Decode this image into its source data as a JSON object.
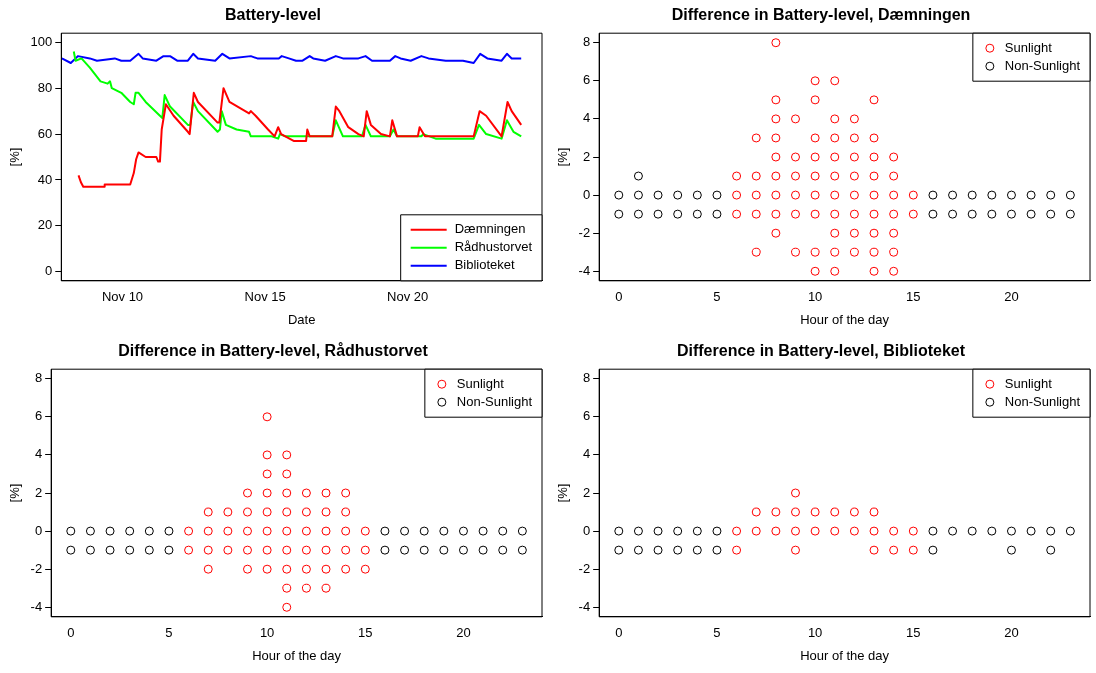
{
  "chart_data": [
    {
      "type": "line",
      "title": "Battery-level",
      "xlabel": "Date",
      "ylabel": "[%]",
      "xlim": [
        "--11-07T20:30",
        "--11-24T17:00"
      ],
      "xticks": [
        {
          "value": "--11-10",
          "label": "Nov 10"
        },
        {
          "value": "--11-15",
          "label": "Nov 15"
        },
        {
          "value": "--11-20",
          "label": "Nov 20"
        }
      ],
      "ylim": [
        -4,
        104
      ],
      "yticks": [
        0,
        20,
        40,
        60,
        80,
        100
      ],
      "legend": "bottom right",
      "marker": "none",
      "series": [
        {
          "name": "Dæmningen",
          "color": "#ff0000",
          "x": [
            "--11-08T11:00",
            "--11-08T13:00",
            "--11-08T15:00",
            "--11-09T08:30",
            "--11-09T09:00",
            "--11-10T06:30",
            "--11-10T09:30",
            "--11-10T11:30",
            "--11-10T13:30",
            "--11-10T19:30",
            "--11-11T04:30",
            "--11-11T06:00",
            "--11-11T07:30",
            "--11-11T09:00",
            "--11-11T12:30",
            "--11-11T19:00",
            "--11-12T07:00",
            "--11-12T08:30",
            "--11-12T12:00",
            "--11-12T15:30",
            "--11-13T08:00",
            "--11-13T09:30",
            "--11-13T13:00",
            "--11-13T18:00",
            "--11-14T10:30",
            "--11-14T12:00",
            "--11-14T16:00",
            "--11-15T02:30",
            "--11-15T08:00",
            "--11-15T11:00",
            "--11-15T13:30",
            "--11-16T00:00",
            "--11-16T10:30",
            "--11-16T11:30",
            "--11-16T13:30",
            "--11-17T08:30",
            "--11-17T11:30",
            "--11-17T14:30",
            "--11-17T22:00",
            "--11-18T06:30",
            "--11-18T11:00",
            "--11-18T13:30",
            "--11-18T17:00",
            "--11-19T01:30",
            "--11-19T09:00",
            "--11-19T11:00",
            "--11-19T15:00",
            "--11-20T08:30",
            "--11-20T10:00",
            "--11-20T14:30",
            "--11-21T14:00",
            "--11-22T07:30",
            "--11-22T12:30",
            "--11-22T18:00",
            "--11-23T07:00",
            "--11-23T12:00",
            "--11-23T15:30",
            "--11-23T23:30"
          ],
          "values": [
            42,
            39,
            37,
            37,
            38,
            38,
            43,
            49,
            52,
            50,
            50,
            48,
            48,
            62,
            73,
            68,
            61,
            60,
            78,
            74,
            65,
            65,
            80,
            74,
            69,
            70,
            68,
            62,
            59,
            63,
            60,
            57,
            57,
            62,
            59,
            59,
            72,
            70,
            63,
            60,
            59,
            70,
            64,
            60,
            59,
            66,
            59,
            59,
            63,
            59,
            59,
            59,
            70,
            68,
            59,
            74,
            70,
            64
          ]
        },
        {
          "name": "Rådhustorvet",
          "color": "#00ff00",
          "x": [
            "--11-08T07:00",
            "--11-08T08:30",
            "--11-08T13:30",
            "--11-08T20:30",
            "--11-09T05:30",
            "--11-09T11:30",
            "--11-09T13:30",
            "--11-09T15:00",
            "--11-09T23:00",
            "--11-10T06:30",
            "--11-10T09:30",
            "--11-10T11:00",
            "--11-10T13:30",
            "--11-10T19:30",
            "--11-11T07:30",
            "--11-11T09:30",
            "--11-11T11:30",
            "--11-11T16:00",
            "--11-12T07:00",
            "--11-12T09:00",
            "--11-12T11:30",
            "--11-12T15:30",
            "--11-13T08:00",
            "--11-13T10:00",
            "--11-13T11:30",
            "--11-13T15:00",
            "--11-14T00:00",
            "--11-14T10:30",
            "--11-14T12:00",
            "--11-15T05:30",
            "--11-15T11:00",
            "--11-15T12:30",
            "--11-15T17:00",
            "--11-17T08:30",
            "--11-17T11:30",
            "--11-17T17:30",
            "--11-18T09:30",
            "--11-18T12:30",
            "--11-18T17:00",
            "--11-19T09:00",
            "--11-19T12:00",
            "--11-19T15:00",
            "--11-20T11:30",
            "--11-20T13:00",
            "--11-20T23:30",
            "--11-22T07:30",
            "--11-22T12:00",
            "--11-22T18:00",
            "--11-23T07:00",
            "--11-23T11:30",
            "--11-23T17:00",
            "--11-23T23:30"
          ],
          "values": [
            96,
            92,
            93,
            89,
            83,
            82,
            83,
            80,
            78,
            74,
            73,
            78,
            78,
            74,
            68,
            67,
            77,
            72,
            64,
            64,
            74,
            70,
            61,
            62,
            70,
            64,
            62,
            61,
            59,
            59,
            58,
            60,
            59,
            59,
            66,
            59,
            59,
            64,
            59,
            59,
            62,
            59,
            59,
            60,
            58,
            58,
            64,
            60,
            58,
            66,
            61,
            59
          ]
        },
        {
          "name": "Biblioteket",
          "color": "#0000ff",
          "x": [
            "--11-07T21:00",
            "--11-08T04:30",
            "--11-08T10:30",
            "--11-08T20:30",
            "--11-09T02:30",
            "--11-09T17:30",
            "--11-09T23:00",
            "--11-10T06:30",
            "--11-10T13:30",
            "--11-10T17:00",
            "--11-11T04:30",
            "--11-11T10:30",
            "--11-11T16:00",
            "--11-11T22:00",
            "--11-12T07:00",
            "--11-12T11:30",
            "--11-12T15:30",
            "--11-13T06:00",
            "--11-13T12:00",
            "--11-13T18:00",
            "--11-14T12:00",
            "--11-14T17:30",
            "--11-15T11:30",
            "--11-15T14:00",
            "--11-15T20:00",
            "--11-16T02:00",
            "--11-16T07:30",
            "--11-16T13:30",
            "--11-16T16:30",
            "--11-17T02:30",
            "--11-17T11:30",
            "--11-17T17:30",
            "--11-18T06:30",
            "--11-18T12:30",
            "--11-18T18:00",
            "--11-19T03:00",
            "--11-19T09:00",
            "--11-19T13:30",
            "--11-19T18:00",
            "--11-20T02:30",
            "--11-20T11:30",
            "--11-20T17:30",
            "--11-21T08:00",
            "--11-21T14:00",
            "--11-21T22:30",
            "--11-22T07:30",
            "--11-22T13:00",
            "--11-22T19:00",
            "--11-23T07:00",
            "--11-23T11:30",
            "--11-23T15:30",
            "--11-23T23:30"
          ],
          "values": [
            93,
            91,
            94,
            93,
            92,
            93,
            92,
            92,
            95,
            93,
            92,
            94,
            94,
            92,
            92,
            95,
            93,
            92,
            95,
            93,
            94,
            93,
            93,
            94,
            93,
            92,
            92,
            94,
            93,
            92,
            94,
            93,
            93,
            94,
            92,
            92,
            92,
            94,
            93,
            92,
            94,
            93,
            92,
            92,
            92,
            91,
            95,
            93,
            92,
            95,
            93,
            93
          ]
        }
      ]
    },
    {
      "type": "scatter",
      "title": "Difference in Battery-level, Dæmningen",
      "xlabel": "Hour of the day",
      "ylabel": "[%]",
      "xlim": [
        -1,
        24
      ],
      "xticks": [
        0,
        5,
        10,
        15,
        20
      ],
      "ylim": [
        -4.5,
        8.5
      ],
      "yticks": [
        -4,
        -2,
        0,
        2,
        4,
        6,
        8
      ],
      "legend": "top right",
      "marker": "circle",
      "series": [
        {
          "name": "Sunlight",
          "color": "#ff0000",
          "x": [
            6,
            6,
            6,
            7,
            7,
            7,
            7,
            7,
            8,
            8,
            8,
            8,
            8,
            8,
            8,
            8,
            8,
            9,
            9,
            9,
            9,
            9,
            9,
            10,
            10,
            10,
            10,
            10,
            10,
            10,
            10,
            10,
            11,
            11,
            11,
            11,
            11,
            11,
            11,
            11,
            11,
            11,
            12,
            12,
            12,
            12,
            12,
            12,
            12,
            12,
            13,
            13,
            13,
            13,
            13,
            13,
            13,
            13,
            13,
            14,
            14,
            14,
            14,
            14,
            14,
            14,
            15,
            15
          ],
          "values": [
            1,
            0,
            -1,
            3,
            1,
            0,
            -1,
            -3,
            8,
            5,
            4,
            3,
            2,
            1,
            0,
            -1,
            -2,
            4,
            2,
            1,
            0,
            -1,
            -3,
            6,
            5,
            3,
            2,
            1,
            0,
            -1,
            -3,
            -4,
            6,
            4,
            3,
            2,
            1,
            0,
            -1,
            -2,
            -3,
            -4,
            4,
            3,
            2,
            1,
            0,
            -1,
            -2,
            -3,
            5,
            3,
            2,
            1,
            0,
            -1,
            -2,
            -3,
            -4,
            2,
            1,
            0,
            -1,
            -2,
            -3,
            -4,
            0,
            -1
          ]
        },
        {
          "name": "Non-Sunlight",
          "color": "#000000",
          "x": [
            0,
            0,
            1,
            1,
            1,
            2,
            2,
            3,
            3,
            4,
            4,
            5,
            5,
            16,
            16,
            17,
            17,
            18,
            18,
            19,
            19,
            20,
            20,
            21,
            21,
            22,
            22,
            23,
            23
          ],
          "values": [
            0,
            -1,
            1,
            0,
            -1,
            0,
            -1,
            0,
            -1,
            0,
            -1,
            0,
            -1,
            0,
            -1,
            0,
            -1,
            0,
            -1,
            0,
            -1,
            0,
            -1,
            0,
            -1,
            0,
            -1,
            0,
            -1
          ]
        }
      ]
    },
    {
      "type": "scatter",
      "title": "Difference in Battery-level, Rådhustorvet",
      "xlabel": "Hour of the day",
      "ylabel": "[%]",
      "xlim": [
        -1,
        24
      ],
      "xticks": [
        0,
        5,
        10,
        15,
        20
      ],
      "ylim": [
        -4.5,
        8.5
      ],
      "yticks": [
        -4,
        -2,
        0,
        2,
        4,
        6,
        8
      ],
      "legend": "top right",
      "marker": "circle",
      "series": [
        {
          "name": "Sunlight",
          "color": "#ff0000",
          "x": [
            6,
            6,
            7,
            7,
            7,
            7,
            8,
            8,
            8,
            9,
            9,
            9,
            9,
            9,
            10,
            10,
            10,
            10,
            10,
            10,
            10,
            10,
            11,
            11,
            11,
            11,
            11,
            11,
            11,
            11,
            11,
            12,
            12,
            12,
            12,
            12,
            12,
            13,
            13,
            13,
            13,
            13,
            13,
            14,
            14,
            14,
            14,
            14,
            15,
            15,
            15
          ],
          "values": [
            0,
            -1,
            1,
            0,
            -1,
            -2,
            1,
            0,
            -1,
            2,
            1,
            0,
            -1,
            -2,
            6,
            4,
            3,
            2,
            1,
            0,
            -1,
            -2,
            4,
            3,
            2,
            1,
            0,
            -1,
            -2,
            -3,
            -4,
            2,
            1,
            0,
            -1,
            -2,
            -3,
            2,
            1,
            0,
            -1,
            -2,
            -3,
            2,
            1,
            0,
            -1,
            -2,
            0,
            -1,
            -2
          ]
        },
        {
          "name": "Non-Sunlight",
          "color": "#000000",
          "x": [
            0,
            0,
            1,
            1,
            2,
            2,
            3,
            3,
            4,
            4,
            5,
            5,
            16,
            16,
            17,
            17,
            18,
            18,
            19,
            19,
            20,
            20,
            21,
            21,
            22,
            22,
            23,
            23
          ],
          "values": [
            0,
            -1,
            0,
            -1,
            0,
            -1,
            0,
            -1,
            0,
            -1,
            0,
            -1,
            0,
            -1,
            0,
            -1,
            0,
            -1,
            0,
            -1,
            0,
            -1,
            0,
            -1,
            0,
            -1,
            0,
            -1
          ]
        }
      ]
    },
    {
      "type": "scatter",
      "title": "Difference in Battery-level, Biblioteket",
      "xlabel": "Hour of the day",
      "ylabel": "[%]",
      "xlim": [
        -1,
        24
      ],
      "xticks": [
        0,
        5,
        10,
        15,
        20
      ],
      "ylim": [
        -4.5,
        8.5
      ],
      "yticks": [
        -4,
        -2,
        0,
        2,
        4,
        6,
        8
      ],
      "legend": "top right",
      "marker": "circle",
      "series": [
        {
          "name": "Sunlight",
          "color": "#ff0000",
          "x": [
            6,
            6,
            7,
            7,
            8,
            8,
            9,
            9,
            9,
            9,
            10,
            10,
            11,
            11,
            12,
            12,
            13,
            13,
            13,
            14,
            14,
            15,
            15
          ],
          "values": [
            0,
            -1,
            1,
            0,
            1,
            0,
            2,
            1,
            0,
            -1,
            1,
            0,
            1,
            0,
            1,
            0,
            1,
            0,
            -1,
            0,
            -1,
            0,
            -1
          ]
        },
        {
          "name": "Non-Sunlight",
          "color": "#000000",
          "x": [
            0,
            0,
            1,
            1,
            2,
            2,
            3,
            3,
            4,
            4,
            5,
            5,
            16,
            16,
            17,
            18,
            19,
            20,
            20,
            21,
            22,
            22,
            23
          ],
          "values": [
            0,
            -1,
            0,
            -1,
            0,
            -1,
            0,
            -1,
            0,
            -1,
            0,
            -1,
            0,
            -1,
            0,
            0,
            0,
            0,
            -1,
            0,
            0,
            -1,
            0
          ]
        }
      ]
    }
  ]
}
